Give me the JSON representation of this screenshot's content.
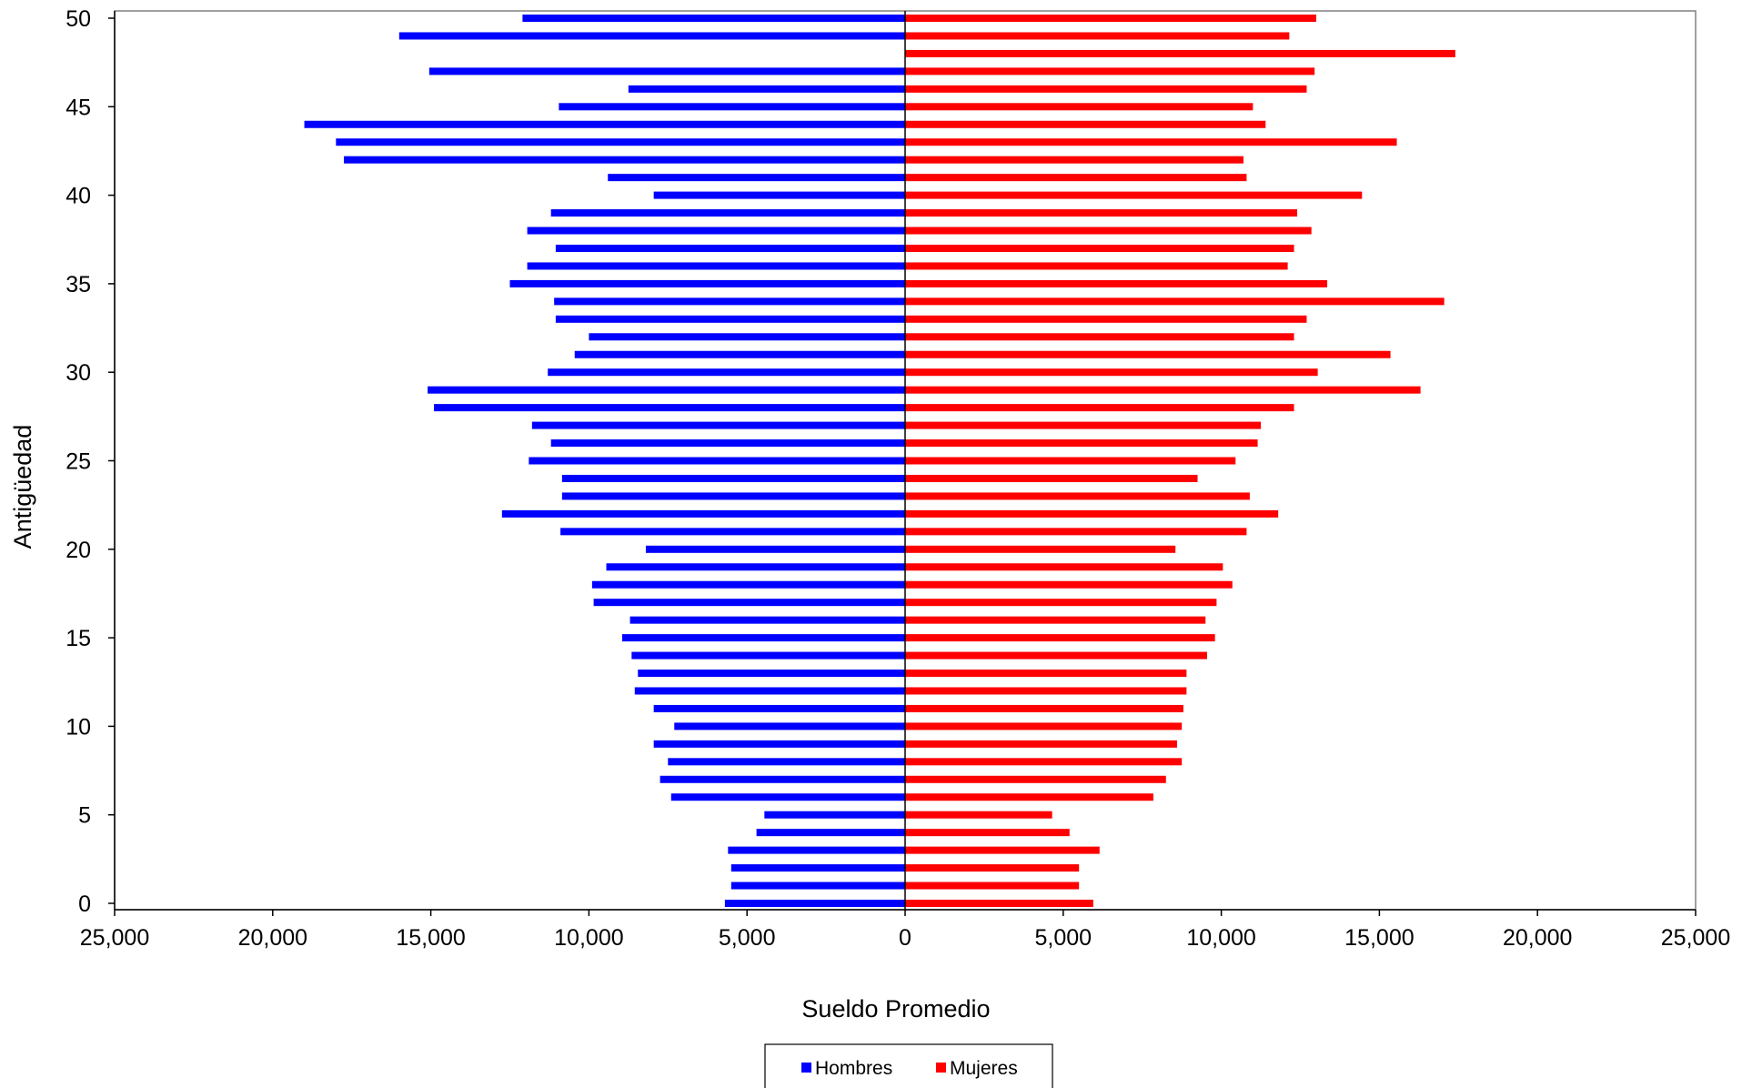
{
  "chart_data": {
    "type": "bar",
    "orientation": "horizontal",
    "layout": "population-pyramid",
    "xlabel": "Sueldo Promedio",
    "ylabel": "Antigüedad",
    "xlim": [
      -25000,
      25000
    ],
    "ylim": [
      0,
      50
    ],
    "xticks": [
      -25000,
      -20000,
      -15000,
      -10000,
      -5000,
      0,
      5000,
      10000,
      15000,
      20000,
      25000
    ],
    "xtick_labels": [
      "25,000",
      "20,000",
      "15,000",
      "10,000",
      "5,000",
      "0",
      "5,000",
      "10,000",
      "15,000",
      "20,000",
      "25,000"
    ],
    "yticks": [
      0,
      5,
      10,
      15,
      20,
      25,
      30,
      35,
      40,
      45,
      50
    ],
    "yticks_text": [
      "0",
      "5",
      "10",
      "15",
      "20",
      "25",
      "30",
      "35",
      "40",
      "45",
      "50"
    ],
    "grid": false,
    "legend_position": "bottom",
    "categories": [
      0,
      1,
      2,
      3,
      4,
      5,
      6,
      7,
      8,
      9,
      10,
      11,
      12,
      13,
      14,
      15,
      16,
      17,
      18,
      19,
      20,
      21,
      22,
      23,
      24,
      25,
      26,
      27,
      28,
      29,
      30,
      31,
      32,
      33,
      34,
      35,
      36,
      37,
      38,
      39,
      40,
      41,
      42,
      43,
      44,
      45,
      46,
      47,
      48,
      49,
      50
    ],
    "series": [
      {
        "name": "Hombres",
        "color": "#0000ff",
        "side": "left",
        "values": [
          5700,
          5500,
          5500,
          5600,
          4700,
          4450,
          7400,
          7750,
          7500,
          7950,
          7300,
          7950,
          8550,
          8450,
          8650,
          8950,
          8700,
          9850,
          9900,
          9450,
          8200,
          10900,
          12750,
          10850,
          10850,
          11900,
          11200,
          11800,
          14900,
          15100,
          11300,
          10450,
          10000,
          11050,
          11100,
          12500,
          11950,
          11050,
          11950,
          11200,
          7950,
          9400,
          17750,
          18000,
          19000,
          10950,
          8750,
          15050,
          0,
          16000,
          12100
        ]
      },
      {
        "name": "Mujeres",
        "color": "#ff0000",
        "side": "right",
        "values": [
          5950,
          5500,
          5500,
          6150,
          5200,
          4650,
          7850,
          8250,
          8750,
          8600,
          8750,
          8800,
          8900,
          8900,
          9550,
          9800,
          9500,
          9850,
          10350,
          10050,
          8550,
          10800,
          11800,
          10900,
          9250,
          10450,
          11150,
          11250,
          12300,
          16300,
          13050,
          15350,
          12300,
          12700,
          17050,
          13350,
          12100,
          12300,
          12850,
          12400,
          14450,
          10800,
          10700,
          15550,
          11400,
          11000,
          12700,
          12950,
          17400,
          12150,
          13000
        ]
      }
    ]
  }
}
